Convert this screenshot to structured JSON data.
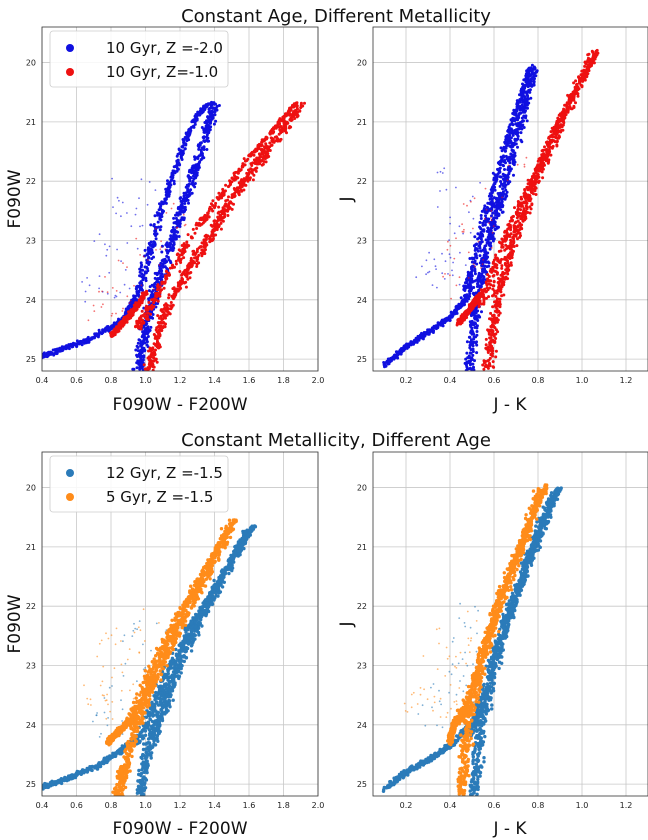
{
  "figure": {
    "top_title": "Constant Age, Different Metallicity",
    "bottom_title": "Constant Metallicity, Different Age"
  },
  "colors": {
    "blue_a": "#1010e0",
    "red_a": "#ee1111",
    "blue_b": "#2b7bb9",
    "orange_b": "#ff8c1a"
  },
  "chart_data": [
    {
      "type": "scatter",
      "panel": "top-left",
      "xlabel": "F090W - F200W",
      "ylabel": "F090W",
      "xlim": [
        0.4,
        2.0
      ],
      "ylim": [
        25.2,
        19.4
      ],
      "y_inverted": true,
      "xticks": [
        "0.4",
        "0.6",
        "0.8",
        "1.0",
        "1.2",
        "1.4",
        "1.6",
        "1.8",
        "2.0"
      ],
      "yticks": [
        "20",
        "21",
        "22",
        "23",
        "24",
        "25"
      ],
      "grid": true,
      "legend": {
        "position": "top-left",
        "entries": [
          "10 Gyr, Z =-2.0",
          "10 Gyr, Z=-1.0"
        ]
      },
      "series": [
        {
          "name": "10 Gyr, Z =-2.0",
          "color": "#1010e0",
          "rgb": [
            [
              1.36,
              20.7
            ],
            [
              1.3,
              20.9
            ],
            [
              1.22,
              21.4
            ],
            [
              1.15,
              22.0
            ],
            [
              1.08,
              22.6
            ],
            [
              1.02,
              23.2
            ],
            [
              0.97,
              23.8
            ],
            [
              0.93,
              24.2
            ]
          ],
          "ms": [
            [
              0.93,
              24.0
            ],
            [
              0.88,
              24.3
            ],
            [
              0.78,
              24.5
            ],
            [
              0.65,
              24.7
            ],
            [
              0.5,
              24.85
            ],
            [
              0.4,
              24.95
            ]
          ],
          "branch": [
            [
              1.4,
              20.7
            ],
            [
              1.35,
              21.2
            ],
            [
              1.28,
              21.9
            ],
            [
              1.2,
              22.6
            ],
            [
              1.12,
              23.3
            ],
            [
              1.05,
              23.9
            ],
            [
              1.0,
              24.5
            ],
            [
              0.96,
              25.2
            ]
          ]
        },
        {
          "name": "10 Gyr, Z=-1.0",
          "color": "#ee1111",
          "rgb": [
            [
              1.88,
              20.65
            ],
            [
              1.75,
              21.1
            ],
            [
              1.6,
              21.6
            ],
            [
              1.45,
              22.2
            ],
            [
              1.3,
              22.8
            ],
            [
              1.15,
              23.5
            ],
            [
              1.03,
              24.1
            ],
            [
              0.95,
              24.5
            ]
          ],
          "ms": [
            [
              1.0,
              23.9
            ],
            [
              0.9,
              24.3
            ],
            [
              0.8,
              24.6
            ]
          ],
          "branch": [
            [
              1.9,
              20.7
            ],
            [
              1.7,
              21.5
            ],
            [
              1.55,
              22.1
            ],
            [
              1.4,
              22.8
            ],
            [
              1.25,
              23.5
            ],
            [
              1.1,
              24.3
            ],
            [
              1.02,
              25.2
            ]
          ]
        }
      ]
    },
    {
      "type": "scatter",
      "panel": "top-right",
      "xlabel": "J - K",
      "ylabel": "J",
      "xlim": [
        0.05,
        1.3
      ],
      "ylim": [
        25.2,
        19.4
      ],
      "y_inverted": true,
      "xticks": [
        "0.2",
        "0.4",
        "0.6",
        "0.8",
        "1.0",
        "1.2"
      ],
      "yticks": [
        "20",
        "21",
        "22",
        "23",
        "24",
        "25"
      ],
      "grid": true,
      "series": [
        {
          "name": "10 Gyr, Z =-2.0",
          "color": "#1010e0",
          "rgb": [
            [
              0.76,
              20.1
            ],
            [
              0.72,
              20.6
            ],
            [
              0.66,
              21.3
            ],
            [
              0.6,
              22.1
            ],
            [
              0.55,
              22.8
            ],
            [
              0.5,
              23.5
            ],
            [
              0.47,
              24.0
            ]
          ],
          "ms": [
            [
              0.47,
              24.0
            ],
            [
              0.4,
              24.3
            ],
            [
              0.3,
              24.55
            ],
            [
              0.2,
              24.8
            ],
            [
              0.1,
              25.1
            ]
          ],
          "branch": [
            [
              0.78,
              20.1
            ],
            [
              0.72,
              21.0
            ],
            [
              0.65,
              22.0
            ],
            [
              0.58,
              23.0
            ],
            [
              0.52,
              24.0
            ],
            [
              0.49,
              25.2
            ]
          ]
        },
        {
          "name": "10 Gyr, Z=-1.0",
          "color": "#ee1111",
          "rgb": [
            [
              1.07,
              19.8
            ],
            [
              0.98,
              20.4
            ],
            [
              0.88,
              21.1
            ],
            [
              0.78,
              21.9
            ],
            [
              0.68,
              22.7
            ],
            [
              0.6,
              23.5
            ],
            [
              0.54,
              24.1
            ]
          ],
          "ms": [
            [
              0.54,
              23.9
            ],
            [
              0.48,
              24.2
            ],
            [
              0.44,
              24.4
            ]
          ],
          "branch": [
            [
              1.05,
              19.85
            ],
            [
              0.92,
              20.9
            ],
            [
              0.8,
              21.9
            ],
            [
              0.7,
              22.9
            ],
            [
              0.62,
              23.9
            ],
            [
              0.57,
              25.2
            ]
          ]
        }
      ]
    },
    {
      "type": "scatter",
      "panel": "bottom-left",
      "xlabel": "F090W - F200W",
      "ylabel": "F090W",
      "xlim": [
        0.4,
        2.0
      ],
      "ylim": [
        25.2,
        19.4
      ],
      "y_inverted": true,
      "xticks": [
        "0.4",
        "0.6",
        "0.8",
        "1.0",
        "1.2",
        "1.4",
        "1.6",
        "1.8",
        "2.0"
      ],
      "yticks": [
        "20",
        "21",
        "22",
        "23",
        "24",
        "25"
      ],
      "grid": true,
      "legend": {
        "position": "top-left",
        "entries": [
          "12 Gyr, Z =-1.5",
          "5 Gyr, Z =-1.5"
        ]
      },
      "series": [
        {
          "name": "12 Gyr, Z =-1.5",
          "color": "#2b7bb9",
          "rgb": [
            [
              1.63,
              20.65
            ],
            [
              1.5,
              21.2
            ],
            [
              1.38,
              21.8
            ],
            [
              1.25,
              22.4
            ],
            [
              1.13,
              23.1
            ],
            [
              1.03,
              23.8
            ],
            [
              0.96,
              24.3
            ]
          ],
          "ms": [
            [
              0.95,
              24.2
            ],
            [
              0.85,
              24.45
            ],
            [
              0.72,
              24.7
            ],
            [
              0.55,
              24.9
            ],
            [
              0.4,
              25.05
            ]
          ],
          "branch": [
            [
              1.6,
              20.7
            ],
            [
              1.45,
              21.5
            ],
            [
              1.3,
              22.3
            ],
            [
              1.18,
              23.1
            ],
            [
              1.08,
              23.9
            ],
            [
              1.0,
              24.6
            ],
            [
              0.97,
              25.2
            ]
          ]
        },
        {
          "name": "5 Gyr, Z =-1.5",
          "color": "#ff8c1a",
          "rgb": [
            [
              1.52,
              20.55
            ],
            [
              1.4,
              21.1
            ],
            [
              1.28,
              21.7
            ],
            [
              1.15,
              22.4
            ],
            [
              1.03,
              23.1
            ],
            [
              0.95,
              23.7
            ],
            [
              0.9,
              24.0
            ]
          ],
          "ms": [
            [
              0.92,
              23.9
            ],
            [
              0.85,
              24.1
            ],
            [
              0.78,
              24.3
            ]
          ],
          "branch": [
            [
              1.5,
              20.6
            ],
            [
              1.35,
              21.5
            ],
            [
              1.2,
              22.3
            ],
            [
              1.05,
              23.2
            ],
            [
              0.95,
              24.0
            ],
            [
              0.88,
              24.7
            ],
            [
              0.84,
              25.2
            ]
          ]
        }
      ]
    },
    {
      "type": "scatter",
      "panel": "bottom-right",
      "xlabel": "J - K",
      "ylabel": "J",
      "xlim": [
        0.05,
        1.3
      ],
      "ylim": [
        25.2,
        19.4
      ],
      "y_inverted": true,
      "xticks": [
        "0.2",
        "0.4",
        "0.6",
        "0.8",
        "1.0",
        "1.2"
      ],
      "yticks": [
        "20",
        "21",
        "22",
        "23",
        "24",
        "25"
      ],
      "grid": true,
      "series": [
        {
          "name": "12 Gyr, Z =-1.5",
          "color": "#2b7bb9",
          "rgb": [
            [
              0.9,
              20.0
            ],
            [
              0.82,
              20.6
            ],
            [
              0.74,
              21.4
            ],
            [
              0.66,
              22.2
            ],
            [
              0.59,
              23.0
            ],
            [
              0.53,
              23.8
            ],
            [
              0.49,
              24.2
            ]
          ],
          "ms": [
            [
              0.49,
              24.0
            ],
            [
              0.42,
              24.3
            ],
            [
              0.32,
              24.55
            ],
            [
              0.2,
              24.8
            ],
            [
              0.1,
              25.1
            ]
          ],
          "branch": [
            [
              0.88,
              20.05
            ],
            [
              0.78,
              21.0
            ],
            [
              0.68,
              22.0
            ],
            [
              0.6,
              23.0
            ],
            [
              0.54,
              24.0
            ],
            [
              0.51,
              25.2
            ]
          ]
        },
        {
          "name": "5 Gyr, Z =-1.5",
          "color": "#ff8c1a",
          "rgb": [
            [
              0.84,
              19.95
            ],
            [
              0.76,
              20.6
            ],
            [
              0.68,
              21.4
            ],
            [
              0.6,
              22.2
            ],
            [
              0.53,
              23.0
            ],
            [
              0.47,
              23.7
            ],
            [
              0.43,
              24.0
            ]
          ],
          "ms": [
            [
              0.43,
              23.9
            ],
            [
              0.41,
              24.1
            ],
            [
              0.4,
              24.3
            ]
          ],
          "branch": [
            [
              0.82,
              20.0
            ],
            [
              0.72,
              21.0
            ],
            [
              0.62,
              22.0
            ],
            [
              0.54,
              23.0
            ],
            [
              0.48,
              24.0
            ],
            [
              0.45,
              25.2
            ]
          ]
        }
      ]
    }
  ]
}
